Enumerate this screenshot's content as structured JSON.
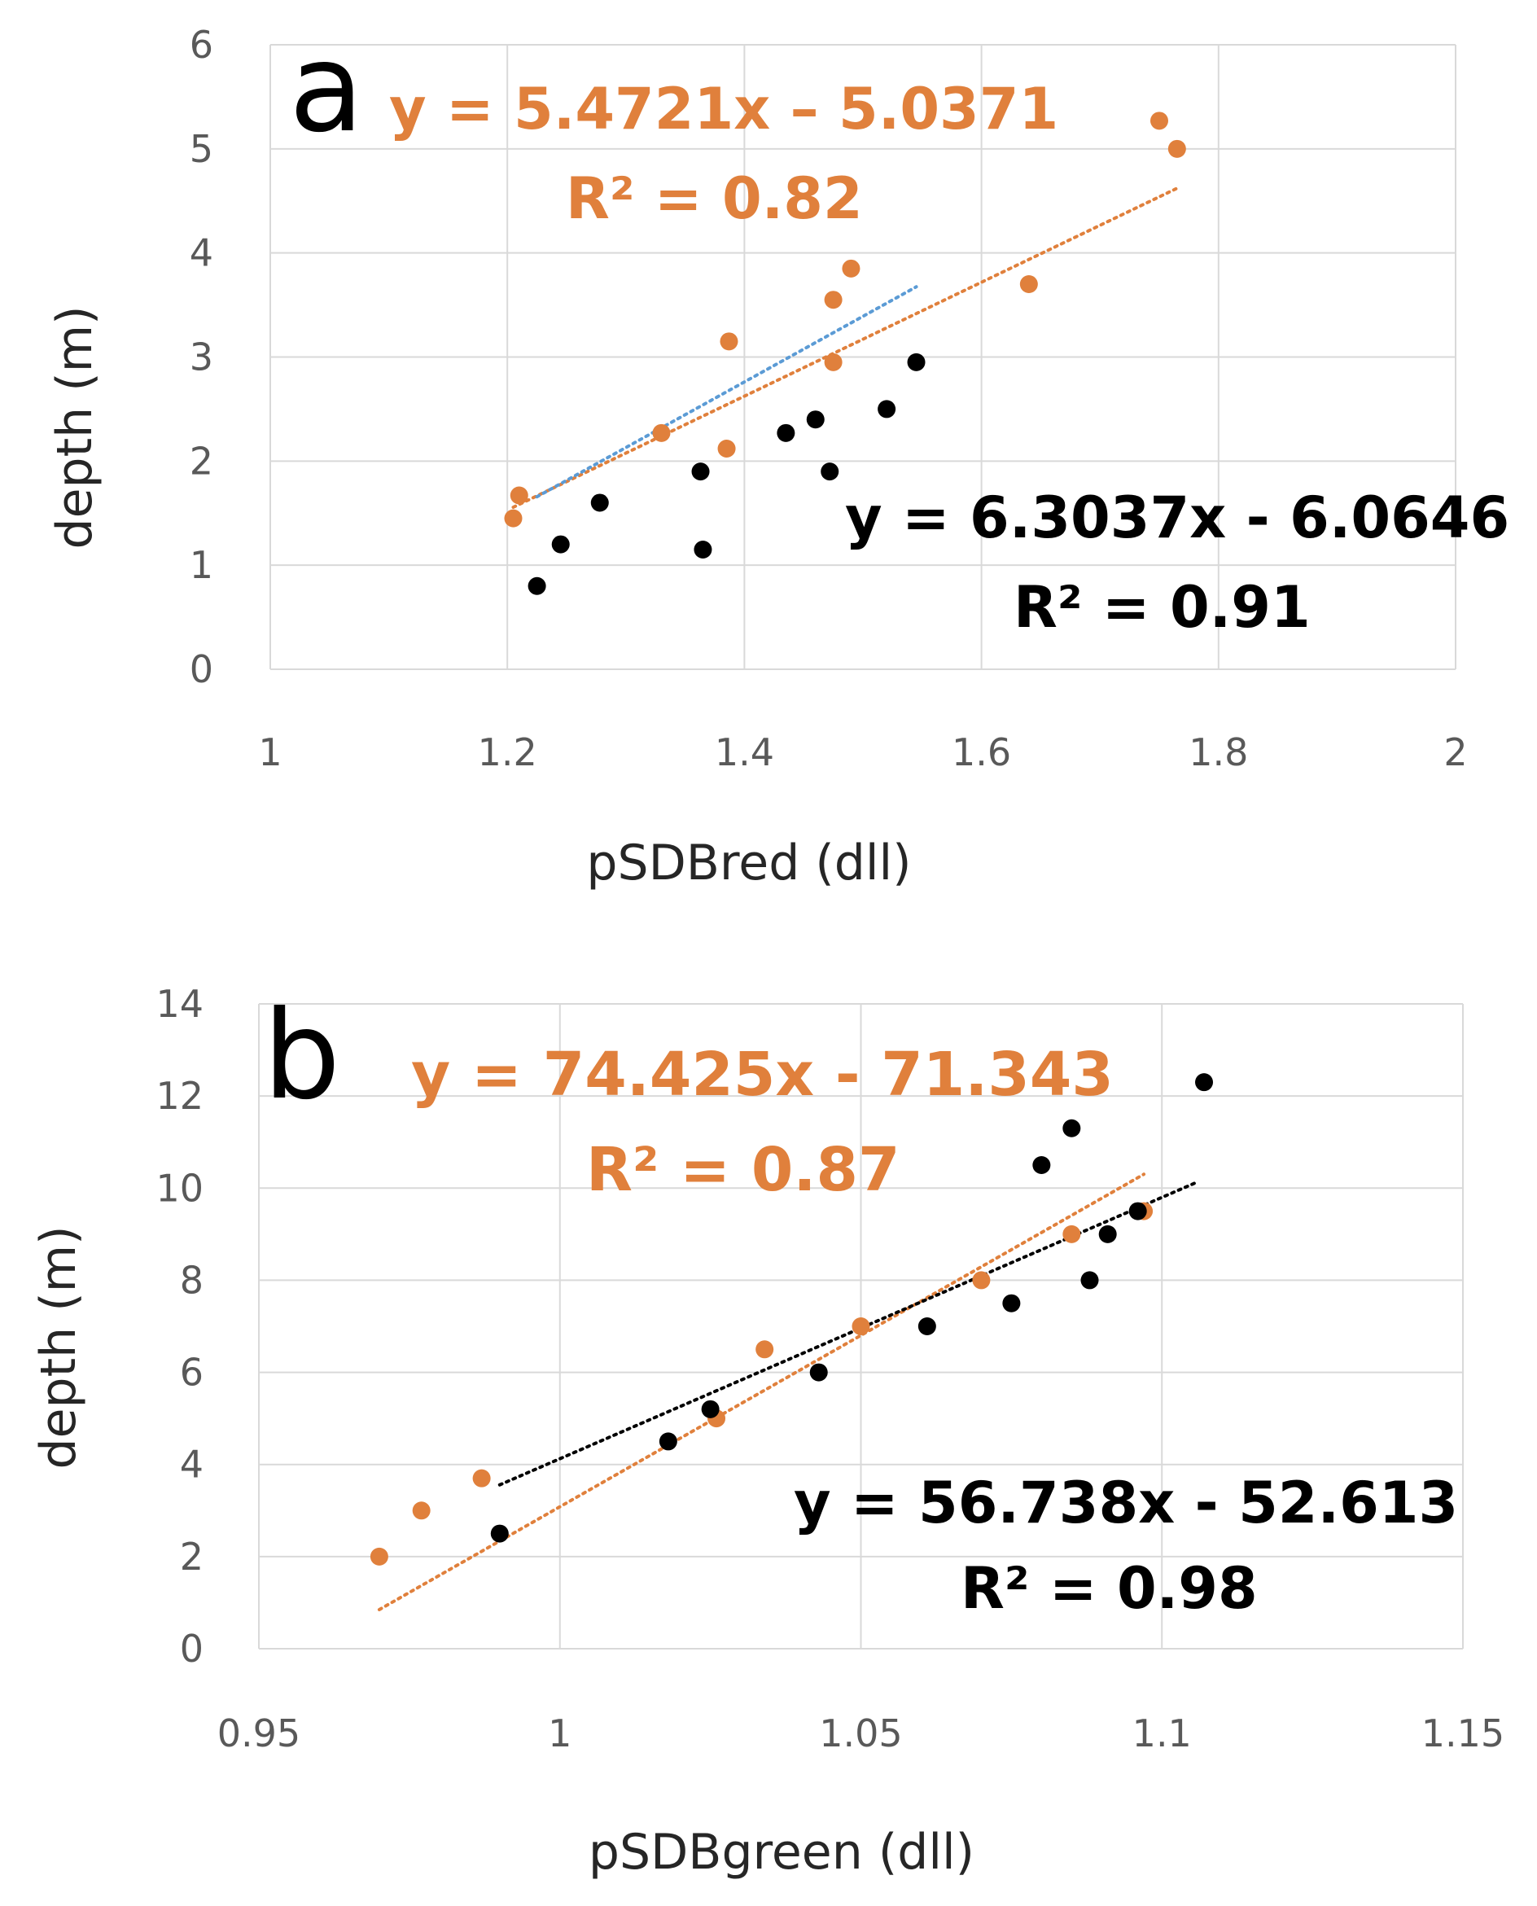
{
  "colors": {
    "orange": "#e0803c",
    "black": "#000000",
    "blue": "#5b9bd5",
    "grid": "#d9d9d9",
    "axis_text": "#595959"
  },
  "chart_data": [
    {
      "type": "scatter",
      "panel_label": "a",
      "xlabel": "pSDBred (dll)",
      "ylabel": "depth (m)",
      "xlim": [
        1,
        2
      ],
      "ylim": [
        0,
        6
      ],
      "xticks": [
        "1",
        "1.2",
        "1.4",
        "1.6",
        "1.8",
        "2"
      ],
      "yticks": [
        "0",
        "1",
        "2",
        "3",
        "4",
        "5",
        "6"
      ],
      "series": [
        {
          "name": "orange",
          "color": "#e0803c",
          "points": [
            [
              1.205,
              1.45
            ],
            [
              1.21,
              1.67
            ],
            [
              1.33,
              2.27
            ],
            [
              1.385,
              2.12
            ],
            [
              1.387,
              3.15
            ],
            [
              1.475,
              3.55
            ],
            [
              1.475,
              2.95
            ],
            [
              1.49,
              3.85
            ],
            [
              1.64,
              3.7
            ],
            [
              1.75,
              5.27
            ],
            [
              1.765,
              5.0
            ]
          ],
          "trendline": {
            "slope": 5.4721,
            "intercept": -5.0371,
            "x_range": [
              1.205,
              1.765
            ],
            "color": "#e0803c"
          },
          "equation": "y = 5.4721x – 5.0371",
          "r2": "R² = 0.82"
        },
        {
          "name": "black",
          "color": "#000000",
          "points": [
            [
              1.225,
              0.8
            ],
            [
              1.245,
              1.2
            ],
            [
              1.278,
              1.6
            ],
            [
              1.363,
              1.9
            ],
            [
              1.365,
              1.15
            ],
            [
              1.435,
              2.27
            ],
            [
              1.46,
              2.4
            ],
            [
              1.472,
              1.9
            ],
            [
              1.52,
              2.5
            ],
            [
              1.545,
              2.95
            ]
          ],
          "trendline": {
            "slope": 6.3037,
            "intercept": -6.0646,
            "x_range": [
              1.225,
              1.545
            ],
            "color": "#5b9bd5"
          },
          "equation": "y = 6.3037x - 6.0646",
          "r2": "R² = 0.91"
        }
      ]
    },
    {
      "type": "scatter",
      "panel_label": "b",
      "xlabel": "pSDBgreen (dll)",
      "ylabel": "depth (m)",
      "xlim": [
        0.95,
        1.15
      ],
      "ylim": [
        0,
        14
      ],
      "xticks": [
        "0.95",
        "1",
        "1.05",
        "1.1",
        "1.15"
      ],
      "yticks": [
        "0",
        "2",
        "4",
        "6",
        "8",
        "10",
        "12",
        "14"
      ],
      "series": [
        {
          "name": "orange",
          "color": "#e0803c",
          "points": [
            [
              0.97,
              2.0
            ],
            [
              0.977,
              3.0
            ],
            [
              0.987,
              3.7
            ],
            [
              1.026,
              5.0
            ],
            [
              1.034,
              6.5
            ],
            [
              1.05,
              7.0
            ],
            [
              1.07,
              8.0
            ],
            [
              1.085,
              9.0
            ],
            [
              1.097,
              9.5
            ]
          ],
          "trendline": {
            "slope": 74.425,
            "intercept": -71.343,
            "x_range": [
              0.97,
              1.097
            ],
            "color": "#e0803c"
          },
          "equation": "y = 74.425x - 71.343",
          "r2": "R² = 0.87"
        },
        {
          "name": "black",
          "color": "#000000",
          "points": [
            [
              0.99,
              2.5
            ],
            [
              1.018,
              4.5
            ],
            [
              1.025,
              5.2
            ],
            [
              1.043,
              6.0
            ],
            [
              1.061,
              7.0
            ],
            [
              1.075,
              7.5
            ],
            [
              1.08,
              10.5
            ],
            [
              1.085,
              11.3
            ],
            [
              1.088,
              8.0
            ],
            [
              1.091,
              9.0
            ],
            [
              1.096,
              9.5
            ],
            [
              1.107,
              12.3
            ]
          ],
          "trendline": {
            "slope": 56.738,
            "intercept": -52.613,
            "x_range": [
              0.99,
              1.106
            ],
            "color": "#000000"
          },
          "equation": "y = 56.738x - 52.613",
          "r2": "R² = 0.98"
        }
      ]
    }
  ]
}
